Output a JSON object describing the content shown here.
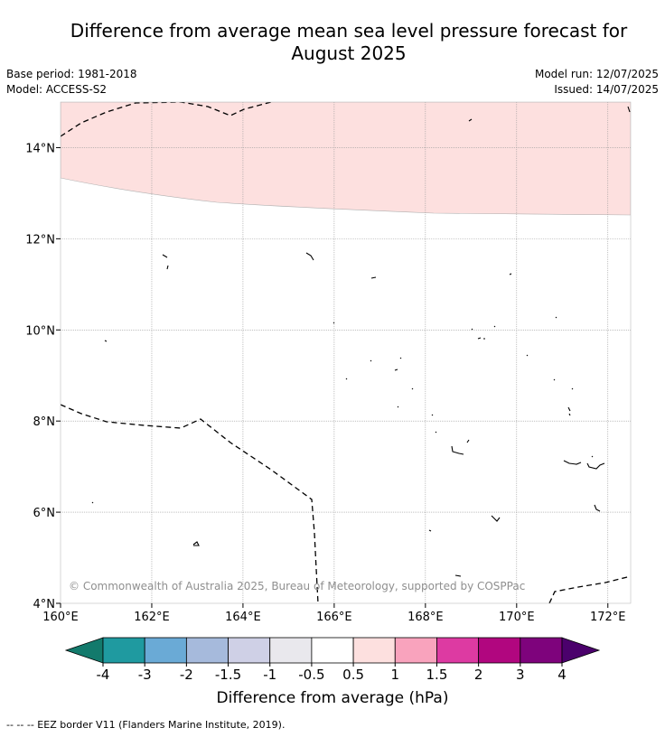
{
  "title_line1": "Difference from average mean sea level pressure forecast for",
  "title_line2": "August 2025",
  "base_period": "Base period: 1981-2018",
  "model": "Model: ACCESS-S2",
  "model_run": "Model run: 12/07/2025",
  "issued": "Issued: 14/07/2025",
  "copyright": "© Commonwealth of Australia 2025, Bureau of Meteorology, supported by COSPPac",
  "map": {
    "x_ticks": [
      "160°E",
      "162°E",
      "164°E",
      "166°E",
      "168°E",
      "170°E",
      "172°E"
    ],
    "y_ticks": [
      "4°N",
      "6°N",
      "8°N",
      "10°N",
      "12°N",
      "14°N"
    ],
    "lon_range": [
      160,
      172.5
    ],
    "lat_range": [
      4,
      15
    ]
  },
  "colorbar": {
    "label": "Difference from average (hPa)",
    "tick_labels": [
      "-4",
      "-3",
      "-2",
      "-1.5",
      "-1",
      "-0.5",
      "0.5",
      "1",
      "1.5",
      "2",
      "3",
      "4"
    ],
    "colors": [
      "#137a6c",
      "#1f9aa0",
      "#6aaad6",
      "#a6badc",
      "#cfd0e6",
      "#e9e8ed",
      "#ffffff",
      "#fde0df",
      "#f9a3bd",
      "#dd3aa2",
      "#b1067f",
      "#7e037c",
      "#4b016c"
    ]
  },
  "legend_note": "--  --  -- EEZ border V11 (Flanders Marine Institute, 2019)."
}
